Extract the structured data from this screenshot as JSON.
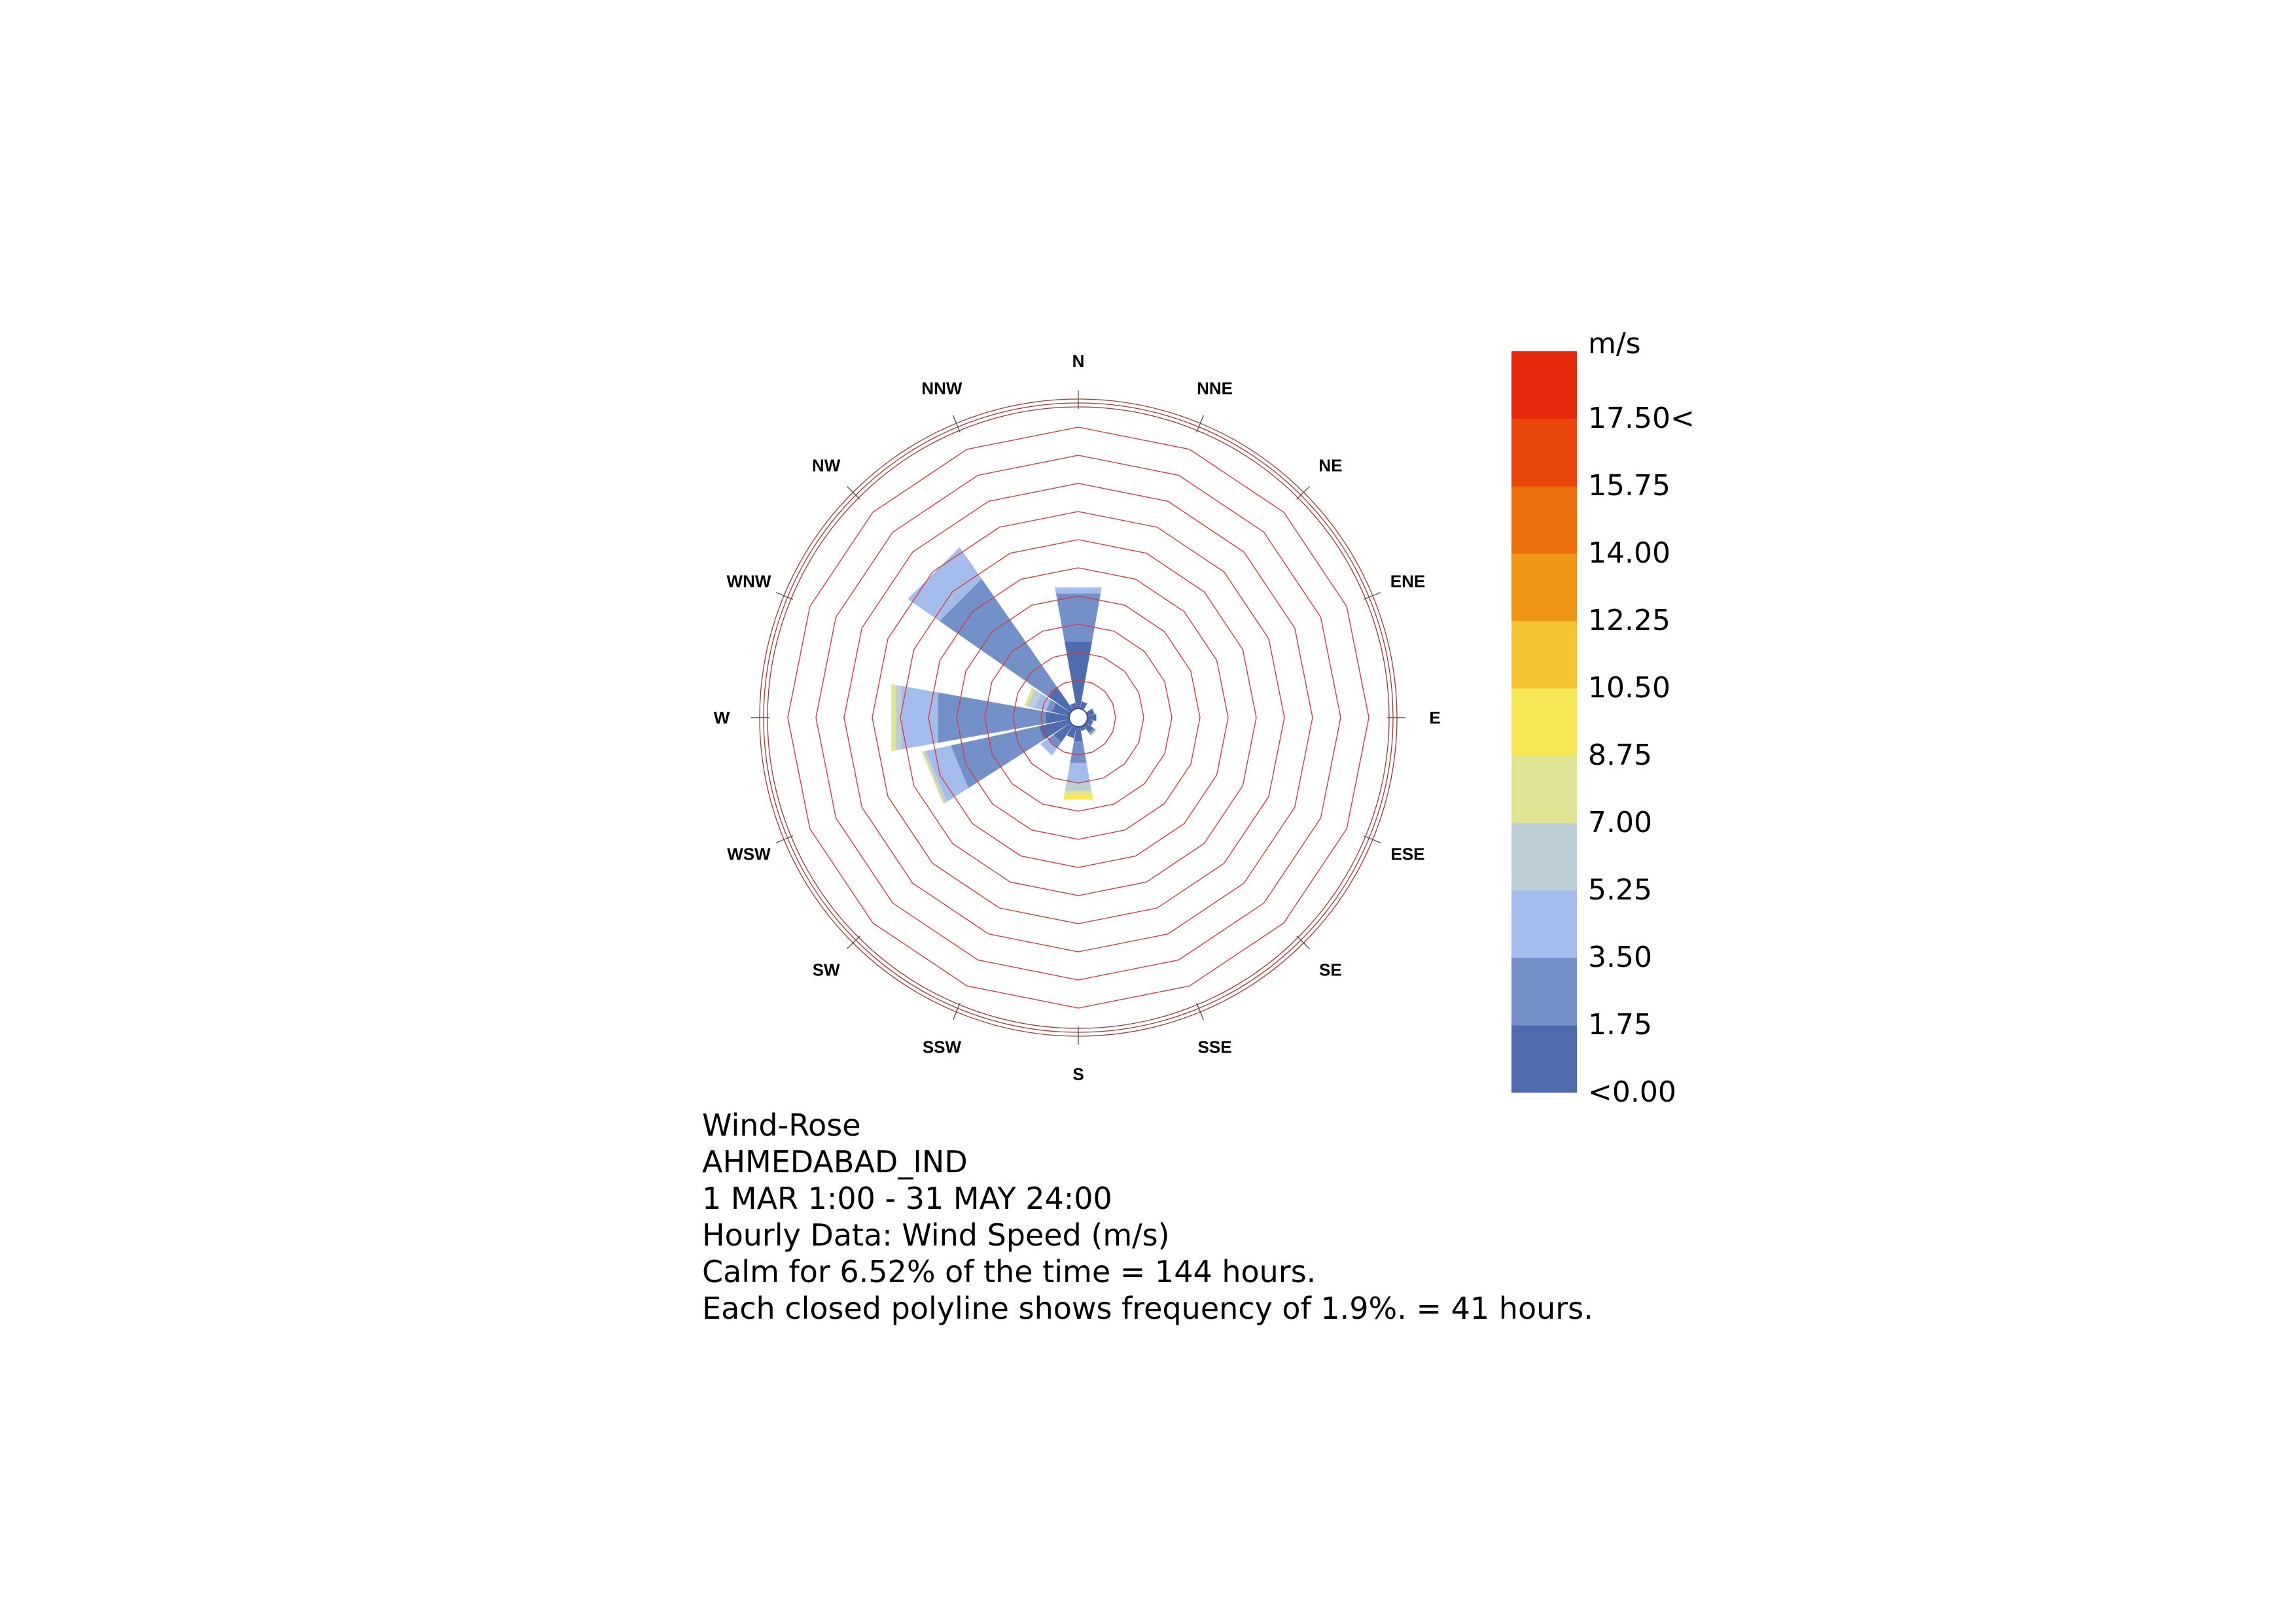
{
  "chart_data": {
    "type": "wind-rose",
    "directions": [
      "N",
      "NNE",
      "NE",
      "ENE",
      "E",
      "ESE",
      "SE",
      "SSE",
      "S",
      "SSW",
      "SW",
      "WSW",
      "W",
      "WNW",
      "NW",
      "NNW"
    ],
    "ring_step_percent": 1.9,
    "ring_count": 10,
    "speed_bins": [
      {
        "label": "<0.00",
        "color": "#4e6cae"
      },
      {
        "label": "1.75",
        "color": "#7390c9"
      },
      {
        "label": "3.50",
        "color": "#a3bcec"
      },
      {
        "label": "5.25",
        "color": "#bccfd9"
      },
      {
        "label": "7.00",
        "color": "#e1e494"
      },
      {
        "label": "8.75",
        "color": "#f8e858"
      },
      {
        "label": "10.50",
        "color": "#f5c433"
      },
      {
        "label": "12.25",
        "color": "#ef9616"
      },
      {
        "label": "14.00",
        "color": "#ea6e0a"
      },
      {
        "label": "15.75",
        "color": "#e9470b"
      },
      {
        "label": "17.50<",
        "color": "#e6280c"
      }
    ],
    "legend_unit": "m/s",
    "frequencies_percent": {
      "N": [
        4.6,
        3.3,
        0.4,
        0,
        0,
        0
      ],
      "NNE": [
        0.5,
        0,
        0,
        0,
        0,
        0
      ],
      "NE": [
        0,
        0,
        0,
        0,
        0,
        0
      ],
      "ENE": [
        0.5,
        0,
        0,
        0,
        0,
        0
      ],
      "E": [
        0.6,
        0,
        0,
        0,
        0,
        0
      ],
      "ESE": [
        0.4,
        0,
        0,
        0,
        0,
        0
      ],
      "SE": [
        0.6,
        0.2,
        0,
        0,
        0.1,
        0
      ],
      "SSE": [
        0.3,
        0,
        0,
        0,
        0,
        0
      ],
      "S": [
        1.0,
        1.5,
        1.3,
        0.6,
        0.3,
        0.3
      ],
      "SSW": [
        0.8,
        0,
        0,
        0,
        0,
        0
      ],
      "SW": [
        1.4,
        0.5,
        0.6,
        0,
        0,
        0
      ],
      "WSW": [
        2.1,
        6.1,
        1.7,
        0.2,
        0.1,
        0
      ],
      "W": [
        1.6,
        7.4,
        2.5,
        0.4,
        0.3,
        0
      ],
      "WNW": [
        1.2,
        0.4,
        0.8,
        0.5,
        0.2,
        0
      ],
      "NW": [
        1.9,
        8.9,
        2.6,
        0,
        0,
        0
      ],
      "NNW": [
        0.4,
        0,
        0,
        0,
        0,
        0
      ]
    },
    "calm_percent": 6.52
  },
  "caption": {
    "title": "Wind-Rose",
    "location": "AHMEDABAD_IND",
    "period": "1 MAR 1:00 - 31 MAY 24:00",
    "data_type": "Hourly Data: Wind Speed (m/s)",
    "calm_note": "Calm for 6.52% of the time = 144 hours.",
    "polyline_note": "Each closed polyline shows frequency of 1.9%. = 41 hours."
  },
  "colors": {
    "ring": "#d33b3b",
    "frame": "#a83232",
    "tick": "#555555"
  }
}
